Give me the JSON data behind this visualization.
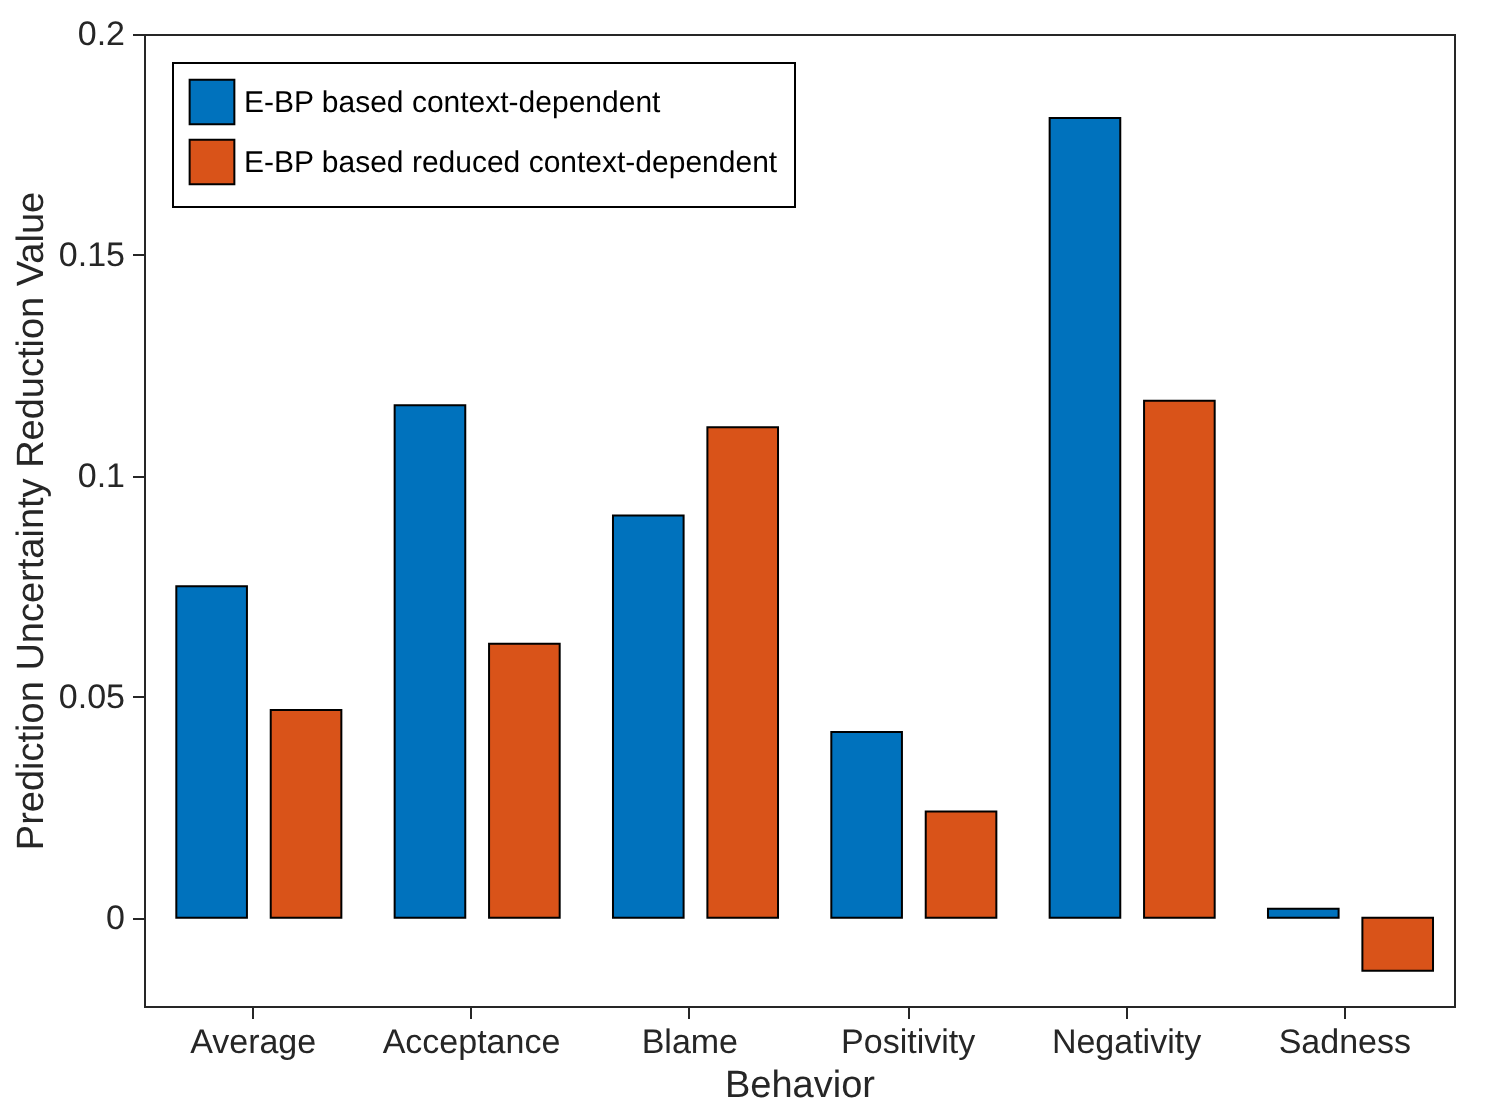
{
  "chart_data": {
    "type": "bar",
    "xlabel": "Behavior",
    "ylabel": "Prediction Uncertainty Reduction Value",
    "categories": [
      "Average",
      "Acceptance",
      "Blame",
      "Positivity",
      "Negativity",
      "Sadness"
    ],
    "series": [
      {
        "name": "E-BP based context-dependent",
        "color": "#0072bd",
        "values": [
          0.075,
          0.116,
          0.091,
          0.042,
          0.181,
          0.002
        ]
      },
      {
        "name": "E-BP based reduced context-dependent",
        "color": "#d95319",
        "values": [
          0.047,
          0.062,
          0.111,
          0.024,
          0.117,
          -0.012
        ]
      }
    ],
    "ylim": [
      -0.02,
      0.2
    ],
    "yticks": [
      0,
      0.05,
      0.1,
      0.15,
      0.2
    ],
    "grid": false,
    "legend": "top left"
  }
}
